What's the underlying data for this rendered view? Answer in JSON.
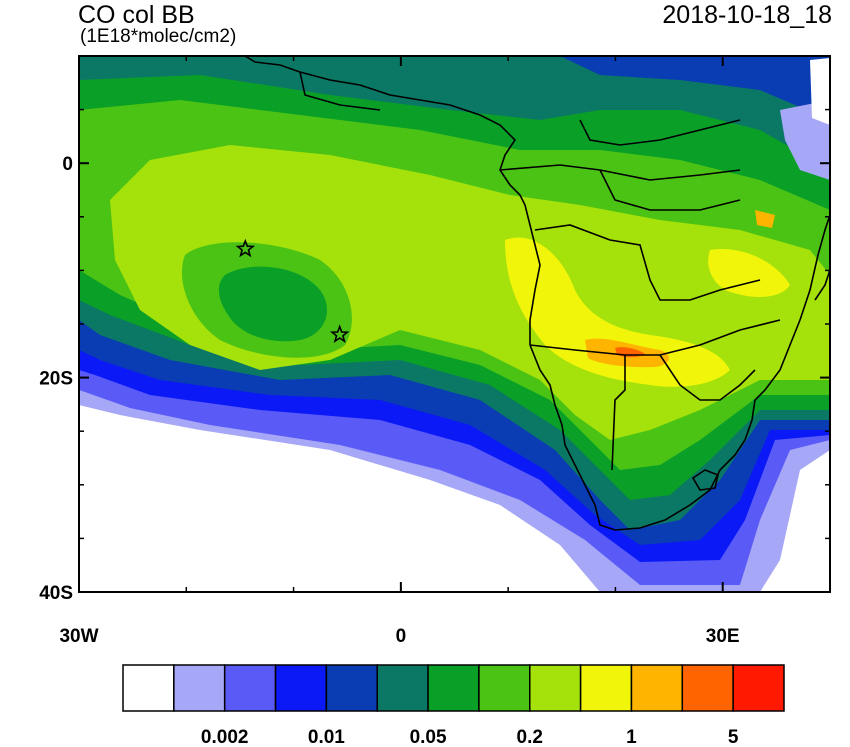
{
  "header": {
    "title": "CO col BB",
    "units": "(1E18*molec/cm2)",
    "datetime": "2018-10-18_18"
  },
  "axes": {
    "y_ticks": [
      {
        "value": 0,
        "label": "0"
      },
      {
        "value": -20,
        "label": "20S"
      },
      {
        "value": -40,
        "label": "40S"
      }
    ],
    "x_ticks": [
      {
        "value": -30,
        "label": "30W"
      },
      {
        "value": 0,
        "label": "0"
      },
      {
        "value": 30,
        "label": "30E"
      }
    ],
    "lon_range": [
      -30,
      40
    ],
    "lat_range": [
      -40,
      10
    ]
  },
  "markers": [
    {
      "name": "star-1",
      "lon": -14.5,
      "lat": -8
    },
    {
      "name": "star-2",
      "lon": -5.7,
      "lat": -16
    }
  ],
  "colorbar": {
    "colors": [
      "#ffffff",
      "#a7a7f7",
      "#5a5af7",
      "#0a19f5",
      "#0a3cb4",
      "#0a7864",
      "#0aa028",
      "#4bc314",
      "#a5e10a",
      "#f0f50a",
      "#ffb400",
      "#ff6400",
      "#ff1900"
    ],
    "labels": [
      {
        "text": "0.002",
        "boundary": 2
      },
      {
        "text": "0.01",
        "boundary": 4
      },
      {
        "text": "0.05",
        "boundary": 6
      },
      {
        "text": "0.2",
        "boundary": 8
      },
      {
        "text": "1",
        "boundary": 10
      },
      {
        "text": "5",
        "boundary": 12
      }
    ]
  },
  "palette": {
    "land_outline": "#000000",
    "background": "#ffffff"
  }
}
